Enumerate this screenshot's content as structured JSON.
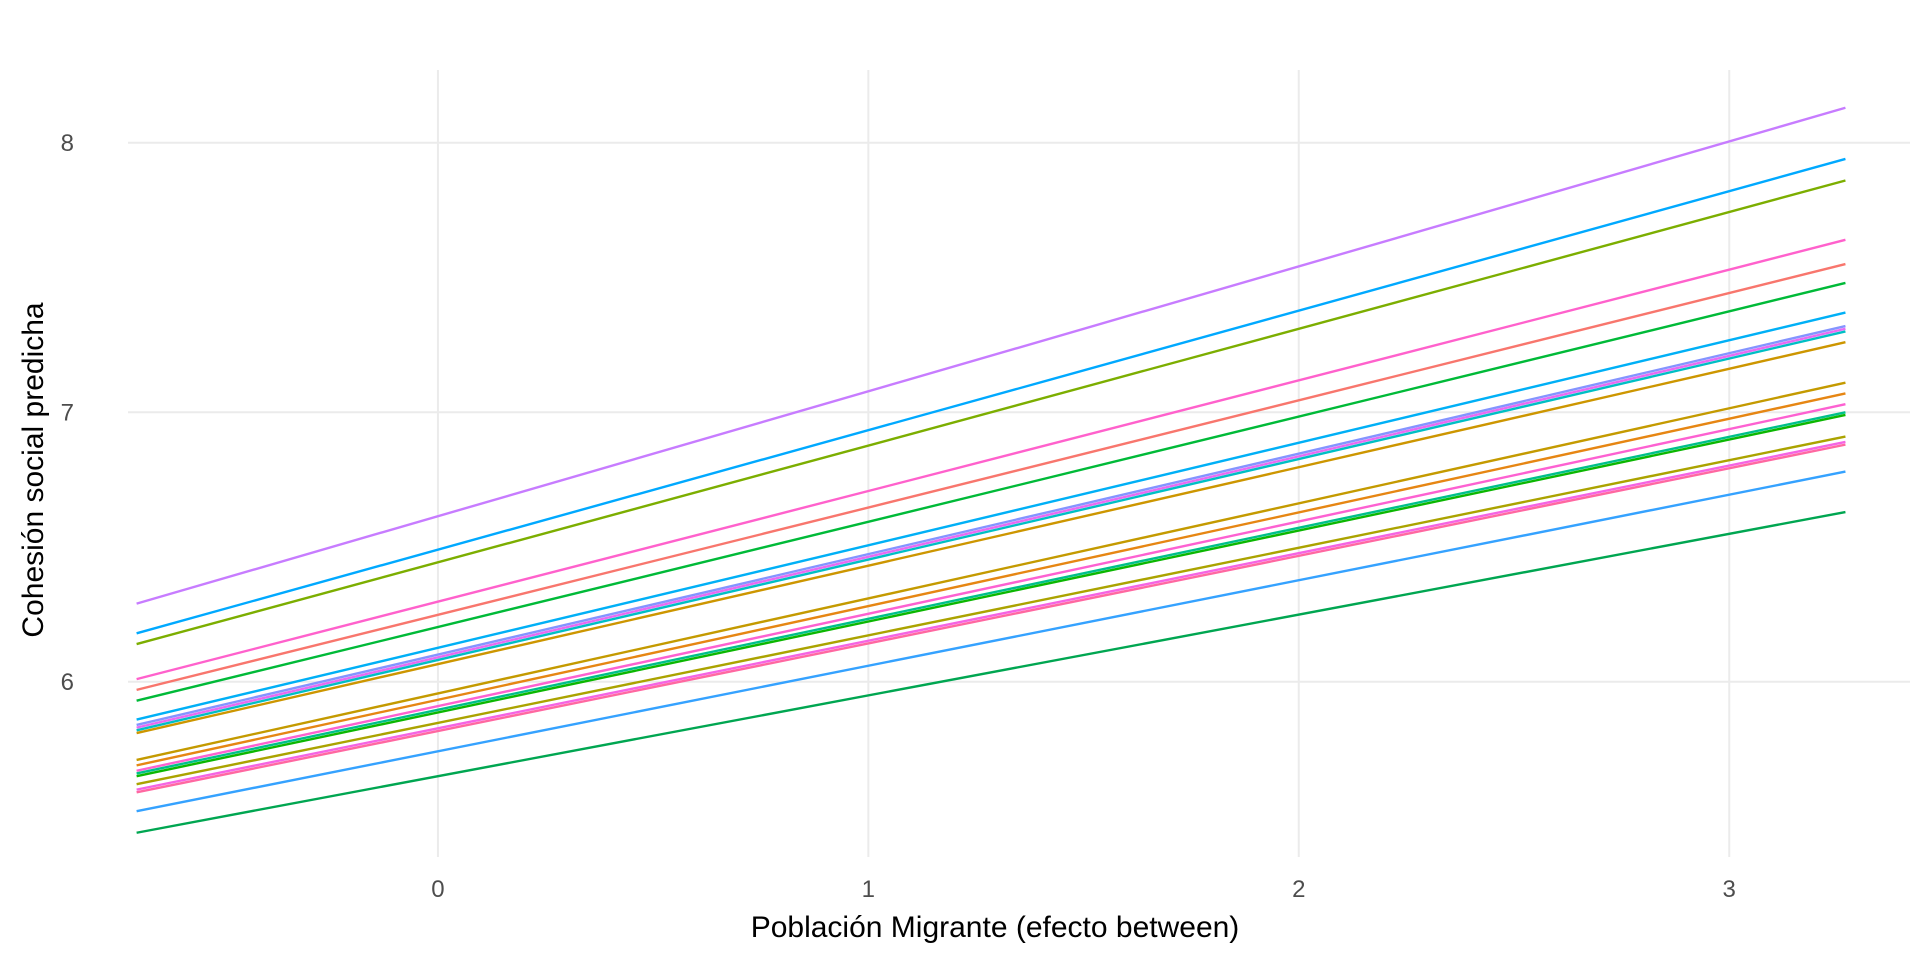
{
  "chart_data": {
    "type": "line",
    "title": "",
    "xlabel": "Población Migrante (efecto between)",
    "ylabel": "Cohesión social predicha",
    "xlim": [
      -0.72,
      3.42
    ],
    "ylim": [
      5.35,
      8.27
    ],
    "grid": true,
    "legend": "none",
    "x_ticks": [
      0,
      1,
      2,
      3
    ],
    "y_ticks": [
      6,
      7,
      8
    ],
    "x_range": [
      -0.7,
      3.27
    ],
    "series": [
      {
        "color": "#C77CFF",
        "values": [
          6.29,
          8.13
        ]
      },
      {
        "color": "#00A9FF",
        "values": [
          6.18,
          7.94
        ]
      },
      {
        "color": "#7CAE00",
        "values": [
          6.14,
          7.86
        ]
      },
      {
        "color": "#FF61CC",
        "values": [
          6.01,
          7.64
        ]
      },
      {
        "color": "#F8766D",
        "values": [
          5.97,
          7.55
        ]
      },
      {
        "color": "#00BA38",
        "values": [
          5.93,
          7.48
        ]
      },
      {
        "color": "#00B0F6",
        "values": [
          5.86,
          7.37
        ]
      },
      {
        "color": "#8494FF",
        "values": [
          5.84,
          7.32
        ]
      },
      {
        "color": "#E76BF3",
        "values": [
          5.83,
          7.31
        ]
      },
      {
        "color": "#00BFC4",
        "values": [
          5.82,
          7.3
        ]
      },
      {
        "color": "#CD9600",
        "values": [
          5.81,
          7.26
        ]
      },
      {
        "color": "#C49A00",
        "values": [
          5.71,
          7.11
        ]
      },
      {
        "color": "#E68613",
        "values": [
          5.69,
          7.07
        ]
      },
      {
        "color": "#FD61D1",
        "values": [
          5.67,
          7.03
        ]
      },
      {
        "color": "#00C08B",
        "values": [
          5.66,
          7.0
        ]
      },
      {
        "color": "#0CB702",
        "values": [
          5.65,
          6.99
        ]
      },
      {
        "color": "#ABA300",
        "values": [
          5.62,
          6.91
        ]
      },
      {
        "color": "#F564E3",
        "values": [
          5.6,
          6.89
        ]
      },
      {
        "color": "#FF68A1",
        "values": [
          5.59,
          6.88
        ]
      },
      {
        "color": "#35A2FF",
        "values": [
          5.52,
          6.78
        ]
      },
      {
        "color": "#00A651",
        "values": [
          5.44,
          6.63
        ]
      }
    ]
  }
}
